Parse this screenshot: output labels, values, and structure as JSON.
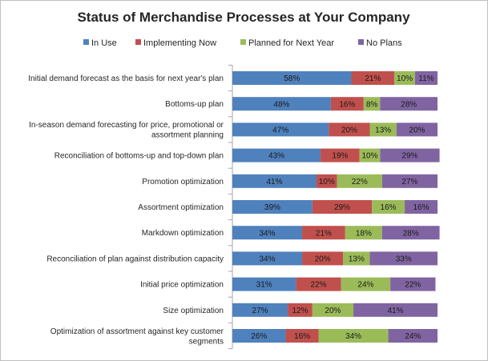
{
  "chart_data": {
    "type": "bar",
    "orientation": "horizontal",
    "stacked": true,
    "title": "Status of Merchandise Processes at Your Company",
    "xlabel": "",
    "ylabel": "",
    "xlim": [
      0,
      100
    ],
    "grid": false,
    "legend_position": "top",
    "categories": [
      "Initial demand forecast as the basis for next year's plan",
      "Bottoms-up plan",
      "In-season demand forecasting for price, promotional or assortment planning",
      "Reconciliation of bottoms-up and top-down plan",
      "Promotion optimization",
      "Assortment optimization",
      "Markdown optimization",
      "Reconciliation of plan against distribution capacity",
      "Initial price optimization",
      "Size optimization",
      "Optimization of assortment against key customer segments"
    ],
    "category_lines": [
      [
        "Initial demand forecast as the basis for next year's plan"
      ],
      [
        "Bottoms-up plan"
      ],
      [
        "In-season demand forecasting for price, promotional or",
        "assortment planning"
      ],
      [
        "Reconciliation of bottoms-up and top-down plan"
      ],
      [
        "Promotion optimization"
      ],
      [
        "Assortment optimization"
      ],
      [
        "Markdown optimization"
      ],
      [
        "Reconciliation of plan against distribution capacity"
      ],
      [
        "Initial price optimization"
      ],
      [
        "Size optimization"
      ],
      [
        "Optimization of assortment against key customer",
        "segments"
      ]
    ],
    "series": [
      {
        "name": "In Use",
        "color": "#4f81bd",
        "values": [
          58,
          48,
          47,
          43,
          41,
          39,
          34,
          34,
          31,
          27,
          26
        ]
      },
      {
        "name": "Implementing Now",
        "color": "#c0504d",
        "values": [
          21,
          16,
          20,
          19,
          10,
          29,
          21,
          20,
          22,
          12,
          16
        ]
      },
      {
        "name": "Planned for Next Year",
        "color": "#9bbb59",
        "values": [
          10,
          8,
          13,
          10,
          22,
          16,
          18,
          13,
          24,
          20,
          34
        ]
      },
      {
        "name": "No Plans",
        "color": "#8064a2",
        "values": [
          11,
          28,
          20,
          29,
          27,
          16,
          28,
          33,
          22,
          41,
          24
        ]
      }
    ],
    "value_suffix": "%"
  }
}
